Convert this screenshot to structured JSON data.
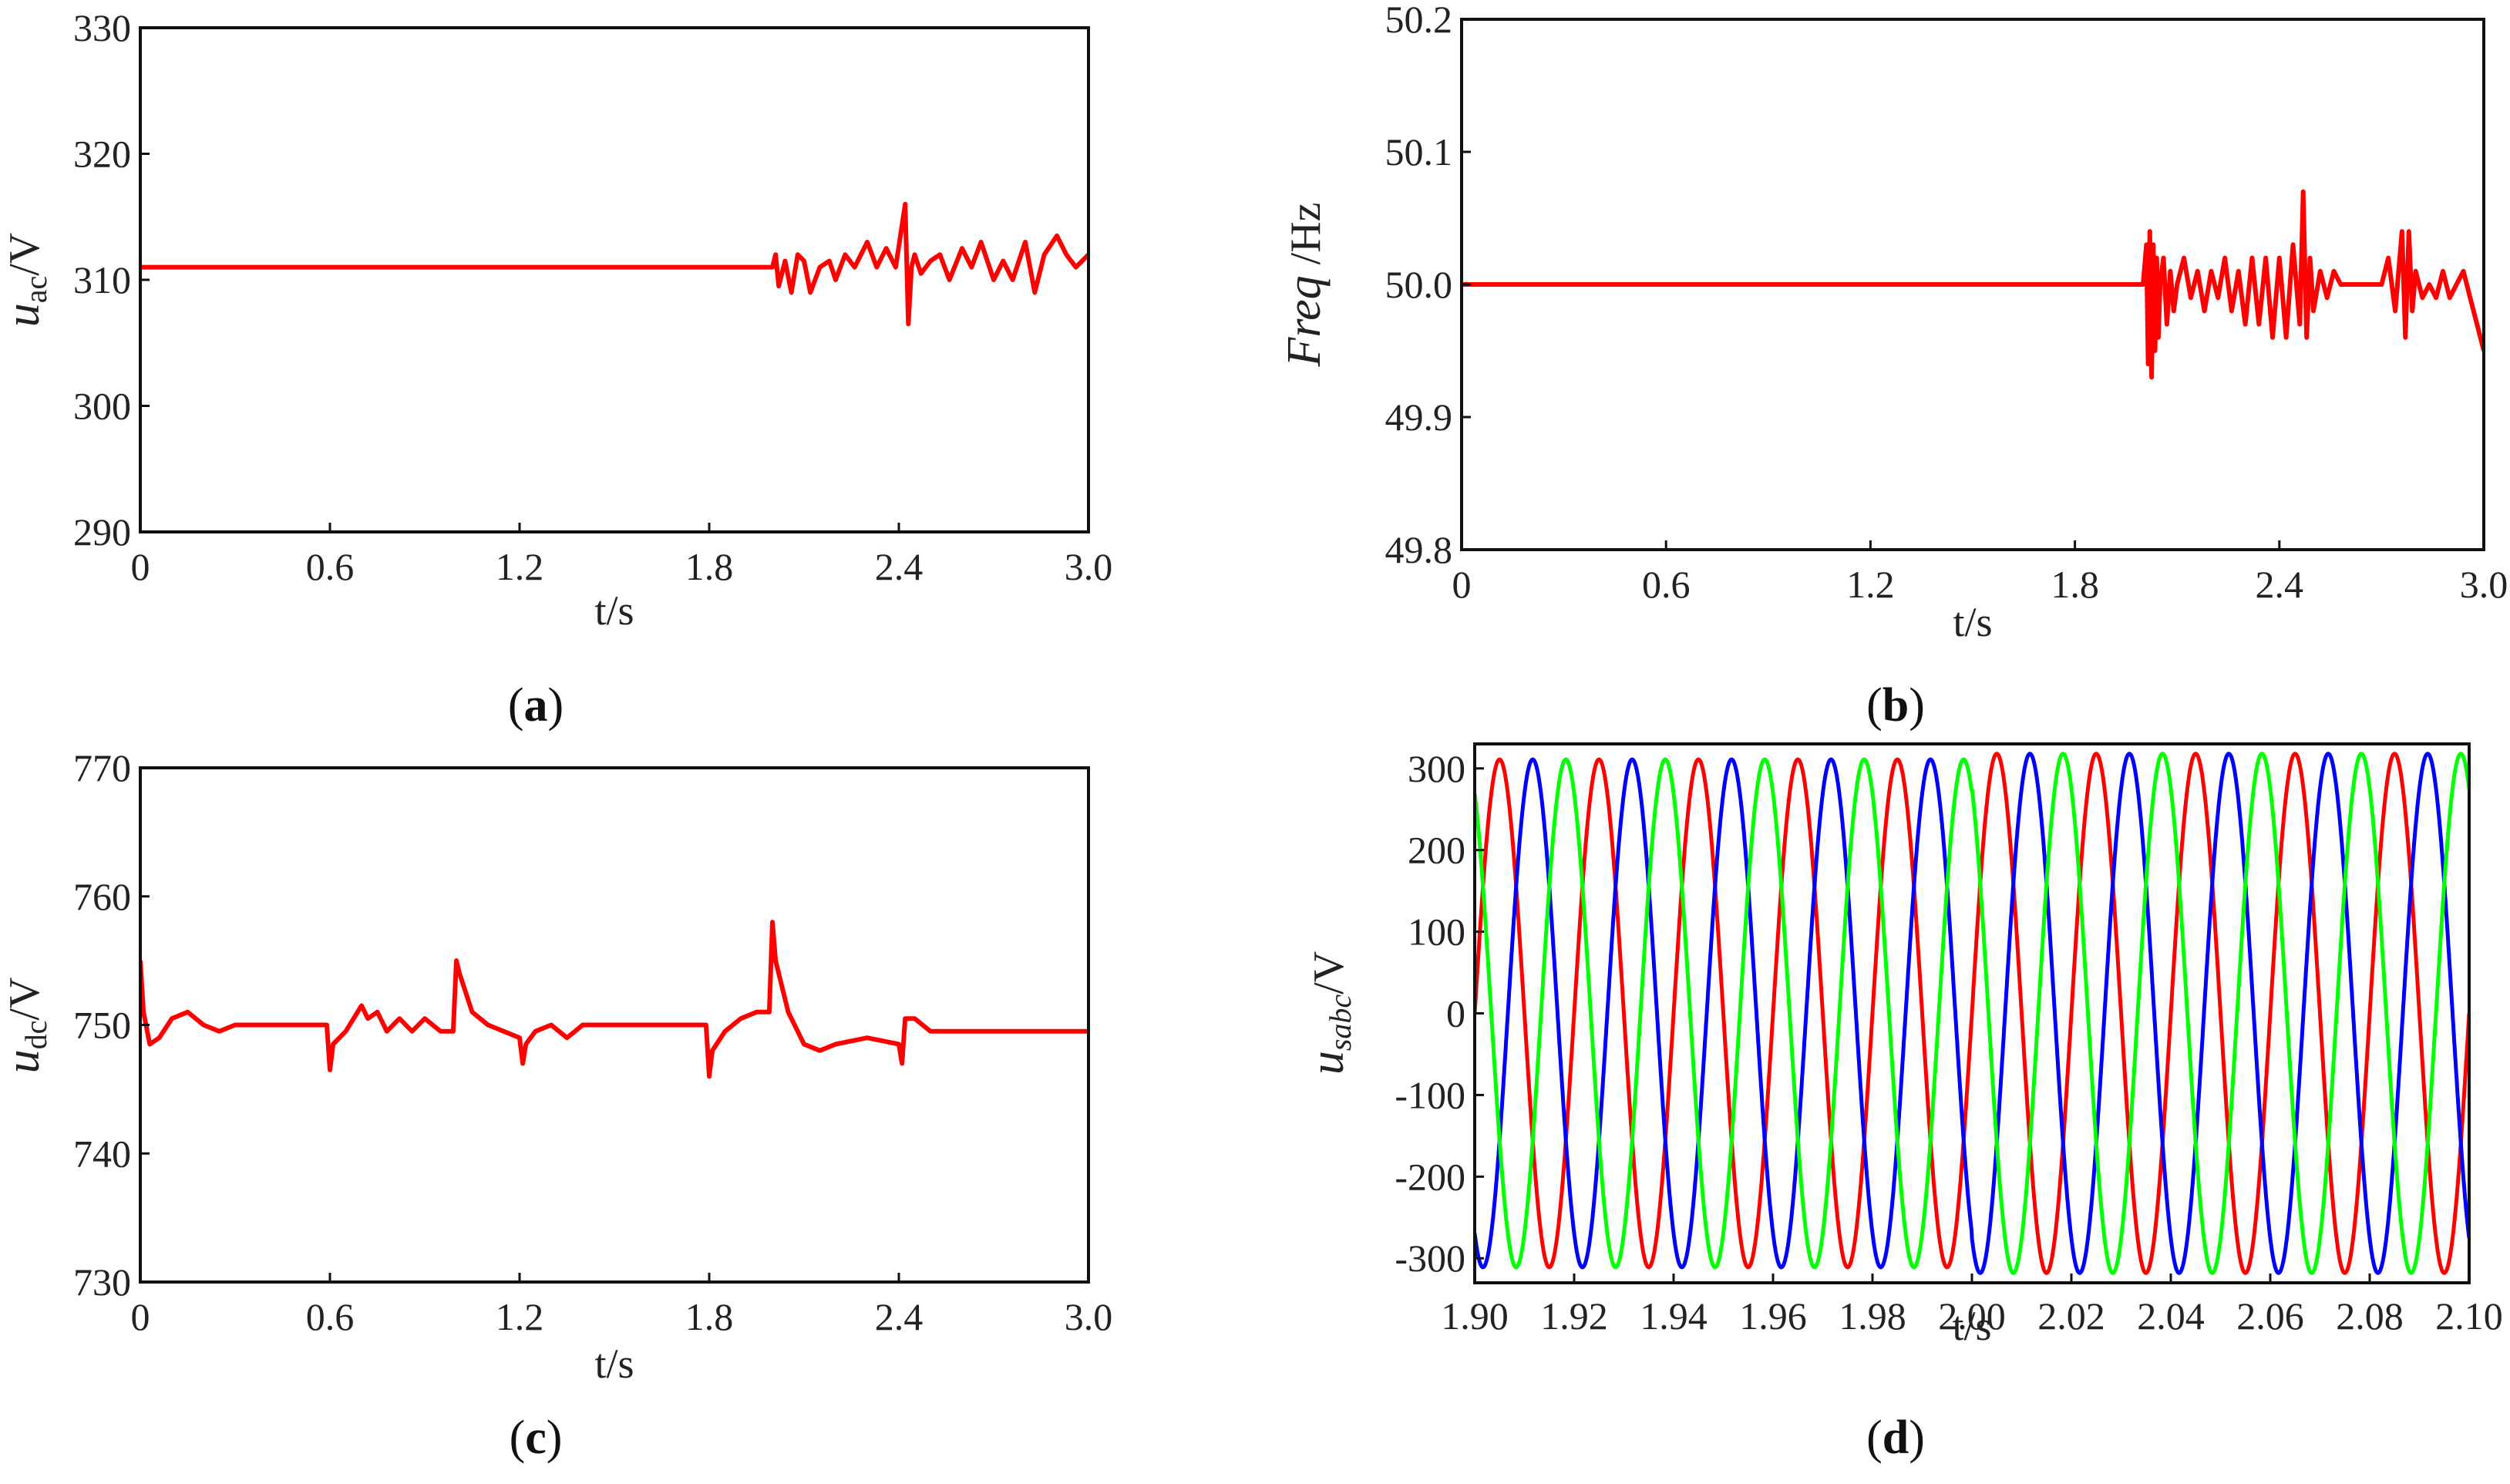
{
  "chart_data": [
    {
      "id": "a",
      "type": "line",
      "panel_label": "a",
      "xlabel": "t/s",
      "ylabel_main": "u",
      "ylabel_sub": "ac",
      "ylabel_unit": "/V",
      "xlim": [
        0,
        3.0
      ],
      "ylim": [
        290,
        330
      ],
      "xticks": [
        "0",
        "0.6",
        "1.2",
        "1.8",
        "2.4",
        "3.0"
      ],
      "yticks": [
        "290",
        "300",
        "310",
        "320",
        "330"
      ],
      "series": [
        {
          "name": "u_ac",
          "color": "#ff0000",
          "x": [
            0,
            2.0,
            2.01,
            2.02,
            2.04,
            2.06,
            2.08,
            2.1,
            2.12,
            2.15,
            2.18,
            2.2,
            2.23,
            2.26,
            2.3,
            2.33,
            2.36,
            2.39,
            2.42,
            2.43,
            2.44,
            2.45,
            2.47,
            2.5,
            2.53,
            2.56,
            2.6,
            2.63,
            2.66,
            2.7,
            2.73,
            2.76,
            2.8,
            2.83,
            2.86,
            2.9,
            2.93,
            2.96,
            3.0
          ],
          "y": [
            311,
            311,
            312,
            309.5,
            311.5,
            309,
            312,
            311.5,
            309,
            311,
            311.5,
            310,
            312,
            311,
            313,
            311,
            312.5,
            311,
            316,
            306.5,
            311,
            312,
            310.5,
            311.5,
            312,
            310,
            312.5,
            311,
            313,
            310,
            311.5,
            310,
            313,
            309,
            312,
            313.5,
            312,
            311,
            312
          ]
        }
      ]
    },
    {
      "id": "b",
      "type": "line",
      "panel_label": "b",
      "xlabel": "t/s",
      "ylabel_main": "Freq",
      "ylabel_sub": "",
      "ylabel_unit": " /Hz",
      "xlim": [
        0,
        3.0
      ],
      "ylim": [
        49.8,
        50.2
      ],
      "xticks": [
        "0",
        "0.6",
        "1.2",
        "1.8",
        "2.4",
        "3.0"
      ],
      "yticks": [
        "49.8",
        "49.9",
        "50.0",
        "50.1",
        "50.2"
      ],
      "series": [
        {
          "name": "Freq",
          "color": "#ff0000",
          "x": [
            0,
            2.0,
            2.01,
            2.015,
            2.02,
            2.025,
            2.03,
            2.035,
            2.04,
            2.045,
            2.05,
            2.06,
            2.07,
            2.08,
            2.09,
            2.1,
            2.12,
            2.14,
            2.16,
            2.18,
            2.2,
            2.22,
            2.24,
            2.26,
            2.28,
            2.3,
            2.32,
            2.34,
            2.36,
            2.38,
            2.4,
            2.42,
            2.44,
            2.46,
            2.47,
            2.48,
            2.49,
            2.5,
            2.52,
            2.54,
            2.56,
            2.58,
            2.6,
            2.63,
            2.66,
            2.7,
            2.72,
            2.74,
            2.76,
            2.77,
            2.78,
            2.79,
            2.8,
            2.82,
            2.84,
            2.86,
            2.88,
            2.9,
            2.92,
            2.94,
            2.96,
            2.98,
            3.0
          ],
          "y": [
            50.0,
            50.0,
            50.03,
            49.94,
            50.04,
            49.93,
            50.03,
            49.95,
            50.02,
            49.96,
            50.0,
            50.02,
            49.97,
            50.01,
            49.98,
            50.0,
            50.02,
            49.99,
            50.01,
            49.98,
            50.01,
            49.99,
            50.02,
            49.98,
            50.01,
            49.97,
            50.02,
            49.97,
            50.02,
            49.96,
            50.02,
            49.96,
            50.03,
            49.97,
            50.07,
            49.96,
            50.02,
            49.98,
            50.01,
            49.99,
            50.01,
            50.0,
            50.0,
            50.0,
            50.0,
            50.0,
            50.02,
            49.98,
            50.04,
            49.96,
            50.04,
            49.98,
            50.01,
            49.99,
            50.0,
            49.99,
            50.01,
            49.99,
            50.0,
            50.01,
            49.99,
            49.97,
            49.95
          ]
        }
      ]
    },
    {
      "id": "c",
      "type": "line",
      "panel_label": "c",
      "xlabel": "t/s",
      "ylabel_main": "u",
      "ylabel_sub": "dc",
      "ylabel_unit": "/V",
      "xlim": [
        0,
        3.0
      ],
      "ylim": [
        730,
        770
      ],
      "xticks": [
        "0",
        "0.6",
        "1.2",
        "1.8",
        "2.4",
        "3.0"
      ],
      "yticks": [
        "730",
        "740",
        "750",
        "760",
        "770"
      ],
      "series": [
        {
          "name": "u_dc",
          "color": "#ff0000",
          "x": [
            0,
            0.01,
            0.03,
            0.06,
            0.1,
            0.15,
            0.2,
            0.25,
            0.3,
            0.4,
            0.5,
            0.59,
            0.6,
            0.61,
            0.65,
            0.7,
            0.72,
            0.75,
            0.78,
            0.82,
            0.86,
            0.9,
            0.95,
            0.99,
            1.0,
            1.01,
            1.05,
            1.1,
            1.15,
            1.2,
            1.21,
            1.22,
            1.25,
            1.3,
            1.35,
            1.4,
            1.5,
            1.6,
            1.7,
            1.79,
            1.8,
            1.81,
            1.85,
            1.9,
            1.95,
            1.99,
            2.0,
            2.01,
            2.05,
            2.1,
            2.15,
            2.2,
            2.3,
            2.4,
            2.41,
            2.42,
            2.45,
            2.5,
            2.6,
            2.7,
            2.8,
            2.9,
            3.0
          ],
          "y": [
            755,
            751,
            748.5,
            749,
            750.5,
            751,
            750,
            749.5,
            750,
            750,
            750,
            750,
            746.5,
            748.5,
            749.5,
            751.5,
            750.5,
            751,
            749.5,
            750.5,
            749.5,
            750.5,
            749.5,
            749.5,
            755,
            754,
            751,
            750,
            749.5,
            749,
            747,
            748.5,
            749.5,
            750,
            749,
            750,
            750,
            750,
            750,
            750,
            746,
            748,
            749.5,
            750.5,
            751,
            751,
            758,
            755,
            751,
            748.5,
            748,
            748.5,
            749,
            748.5,
            747,
            750.5,
            750.5,
            749.5,
            749.5,
            749.5,
            749.5,
            749.5,
            749.5
          ]
        }
      ]
    },
    {
      "id": "d",
      "type": "line",
      "panel_label": "d",
      "xlabel": "t/s",
      "ylabel_main": "u",
      "ylabel_sub": "sabc",
      "ylabel_unit": "/V",
      "xlim": [
        1.9,
        2.1
      ],
      "ylim": [
        -330,
        330
      ],
      "xticks": [
        "1.90",
        "1.92",
        "1.94",
        "1.96",
        "1.98",
        "2.00",
        "2.02",
        "2.04",
        "2.06",
        "2.08",
        "2.10"
      ],
      "yticks": [
        "-300",
        "-200",
        "-100",
        "0",
        "100",
        "200",
        "300"
      ],
      "sine": {
        "frequency_hz": 50,
        "amplitude_v": 311,
        "amplitude_after_2s_v": 318
      },
      "series": [
        {
          "name": "a",
          "color": "#ff0000",
          "phase_deg": 0
        },
        {
          "name": "b",
          "color": "#0000ff",
          "phase_deg": -120
        },
        {
          "name": "c",
          "color": "#00ff00",
          "phase_deg": 120
        }
      ]
    }
  ]
}
